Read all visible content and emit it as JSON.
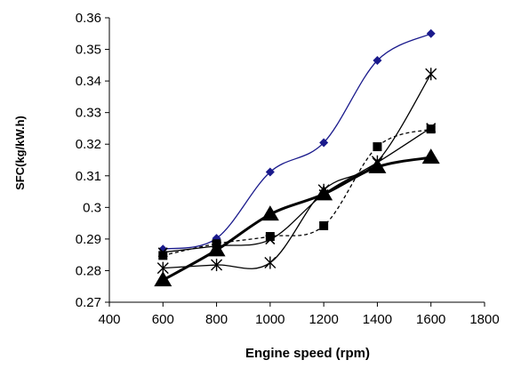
{
  "chart_data": {
    "type": "line",
    "title": "",
    "xlabel": "Engine speed (rpm)",
    "ylabel": "SFC(kg/kW.h)",
    "xlim": [
      400,
      1800
    ],
    "ylim": [
      0.27,
      0.36
    ],
    "x_ticks": [
      "400",
      "600",
      "800",
      "1000",
      "1200",
      "1400",
      "1600",
      "1800"
    ],
    "y_ticks": [
      "0.27",
      "0.28",
      "0.29",
      "0.3",
      "0.31",
      "0.32",
      "0.33",
      "0.34",
      "0.35",
      "0.36"
    ],
    "grid": false,
    "legend": "none",
    "x": [
      600,
      800,
      1000,
      1200,
      1400,
      1600
    ],
    "series": [
      {
        "marker": "diamond",
        "color": "#1a1a8c",
        "line": "solid-thin",
        "values": [
          0.2868,
          0.2902,
          0.3112,
          0.3205,
          0.3465,
          0.355
        ]
      },
      {
        "marker": "asterisk",
        "color": "#000000",
        "line": "solid-thin",
        "values": [
          0.2808,
          0.2818,
          0.2825,
          0.3055,
          0.3145,
          0.3422
        ]
      },
      {
        "marker": "square",
        "color": "#000000",
        "line": "dashed",
        "values": [
          0.2848,
          0.2885,
          0.2908,
          0.2942,
          0.3192,
          0.3248
        ]
      },
      {
        "marker": "x",
        "color": "#000000",
        "line": "solid-thin",
        "values": [
          0.2858,
          0.2878,
          0.2898,
          0.3042,
          0.3142,
          0.3252
        ]
      },
      {
        "marker": "triangle",
        "color": "#000000",
        "line": "solid-thick",
        "values": [
          0.277,
          0.2865,
          0.2978,
          0.3042,
          0.3128,
          0.3158
        ]
      }
    ]
  }
}
